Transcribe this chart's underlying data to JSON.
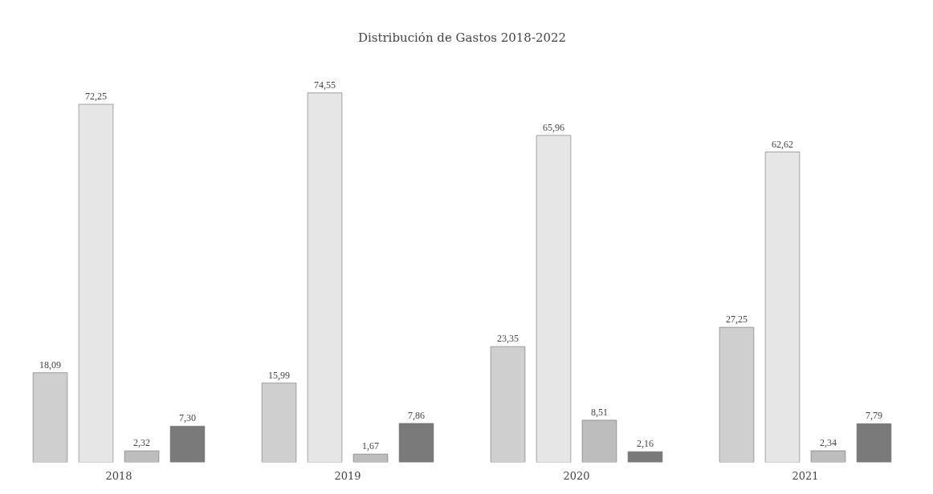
{
  "chart_data": {
    "type": "bar",
    "title": "Distribución de Gastos 2018-2022",
    "categories": [
      "2018",
      "2019",
      "2020",
      "2021"
    ],
    "series": [
      {
        "color": "#cfcfcf",
        "values": [
          18.09,
          15.99,
          23.35,
          27.25
        ],
        "value_labels": [
          "18,09",
          "15,99",
          "23,35",
          "27,25"
        ]
      },
      {
        "color": "#e6e6e6",
        "values": [
          72.25,
          74.55,
          65.96,
          62.62
        ],
        "value_labels": [
          "72,25",
          "74,55",
          "65,96",
          "62,62"
        ]
      },
      {
        "color": "#bdbdbd",
        "values": [
          2.32,
          1.67,
          8.51,
          2.34
        ],
        "value_labels": [
          "2,32",
          "1,67",
          "8,51",
          "2,34"
        ]
      },
      {
        "color": "#7a7a7a",
        "values": [
          7.3,
          7.86,
          2.16,
          7.79
        ],
        "value_labels": [
          "7,30",
          "7,86",
          "2,16",
          "7,79"
        ]
      }
    ]
  }
}
